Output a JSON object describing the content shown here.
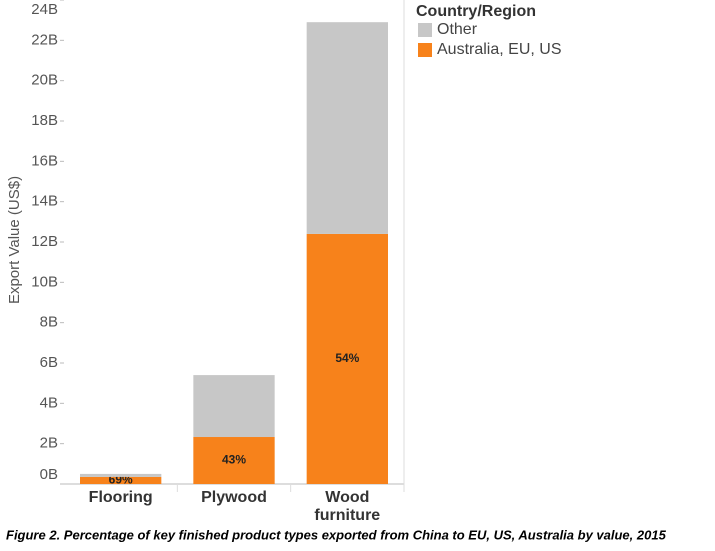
{
  "chart_data": {
    "type": "stacked-bar",
    "caption": "Figure 2. Percentage of key finished product types exported from China to EU, US, Australia by value, 2015",
    "y_label": "Export Value  (US$)",
    "legend_title": "Country/Region",
    "categories": [
      "Flooring",
      "Plywood",
      "Wood furniture"
    ],
    "series": [
      {
        "name": "Australia, EU, US",
        "color": "#f7821b",
        "values": [
          0.35,
          2.33,
          12.4
        ],
        "annotations": [
          "69%",
          "43%",
          "54%"
        ]
      },
      {
        "name": "Other",
        "color": "#c7c7c7",
        "values": [
          0.15,
          3.07,
          10.5
        ]
      }
    ],
    "ylim": [
      0,
      24
    ],
    "yticks": [
      {
        "value": 0,
        "label": "0B"
      },
      {
        "value": 2,
        "label": "2B"
      },
      {
        "value": 4,
        "label": "4B"
      },
      {
        "value": 6,
        "label": "6B"
      },
      {
        "value": 8,
        "label": "8B"
      },
      {
        "value": 10,
        "label": "10B"
      },
      {
        "value": 12,
        "label": "12B"
      },
      {
        "value": 14,
        "label": "14B"
      },
      {
        "value": 16,
        "label": "16B"
      },
      {
        "value": 18,
        "label": "18B"
      },
      {
        "value": 20,
        "label": "20B"
      },
      {
        "value": 22,
        "label": "22B"
      },
      {
        "value": 24,
        "label": "24B"
      }
    ]
  }
}
